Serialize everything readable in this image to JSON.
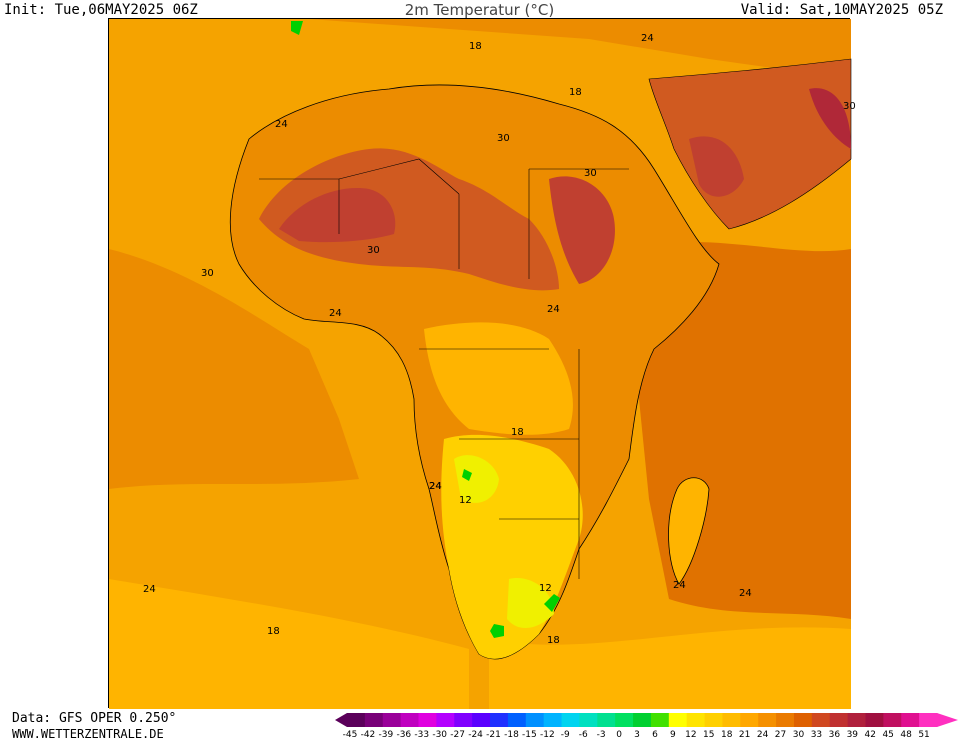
{
  "header": {
    "init": "Init: Tue,06MAY2025 06Z",
    "title": "2m Temperatur (°C)",
    "valid": "Valid: Sat,10MAY2025 05Z"
  },
  "footer": {
    "data_source": "Data: GFS OPER 0.250°",
    "website": "WWW.WETTERZENTRALE.DE"
  },
  "map": {
    "region": "Africa",
    "variable": "2m temperature",
    "contour_labels": [
      "18",
      "24",
      "24",
      "18",
      "30",
      "30",
      "30",
      "30",
      "24",
      "24",
      "24",
      "18",
      "24",
      "12",
      "12",
      "18",
      "24",
      "24",
      "18",
      "24",
      "30"
    ],
    "colors": {
      "cold_band": "#00d000",
      "t9": "#f0f000",
      "t12": "#ffe000",
      "t15": "#ffcc00",
      "t18": "#ffb400",
      "t21": "#f5a000",
      "t24": "#ec8c00",
      "t27": "#e06e00",
      "t30": "#d05a20",
      "t33": "#c04030",
      "t36": "#b02838",
      "border": "#000000",
      "contour": "#a0a0a0"
    }
  },
  "colorbar": {
    "ticks": [
      "-45",
      "-42",
      "-39",
      "-36",
      "-33",
      "-30",
      "-27",
      "-24",
      "-21",
      "-18",
      "-15",
      "-12",
      "-9",
      "-6",
      "-3",
      "0",
      "3",
      "6",
      "9",
      "12",
      "15",
      "18",
      "21",
      "24",
      "27",
      "30",
      "33",
      "36",
      "39",
      "42",
      "45",
      "48",
      "51"
    ],
    "colors": [
      "#5a005a",
      "#780078",
      "#9a009a",
      "#c000c0",
      "#e000e0",
      "#b400ff",
      "#8000ff",
      "#5a00ff",
      "#2030ff",
      "#0060ff",
      "#0090ff",
      "#00b4ff",
      "#00d4f0",
      "#00e0c0",
      "#00e090",
      "#00e060",
      "#00d030",
      "#40e000",
      "#ffff00",
      "#ffe400",
      "#ffd000",
      "#ffbc00",
      "#ffa800",
      "#f59000",
      "#ea7a00",
      "#de6000",
      "#d04820",
      "#c03030",
      "#b0203c",
      "#a01040",
      "#c01060",
      "#e01090",
      "#ff30c0"
    ]
  }
}
